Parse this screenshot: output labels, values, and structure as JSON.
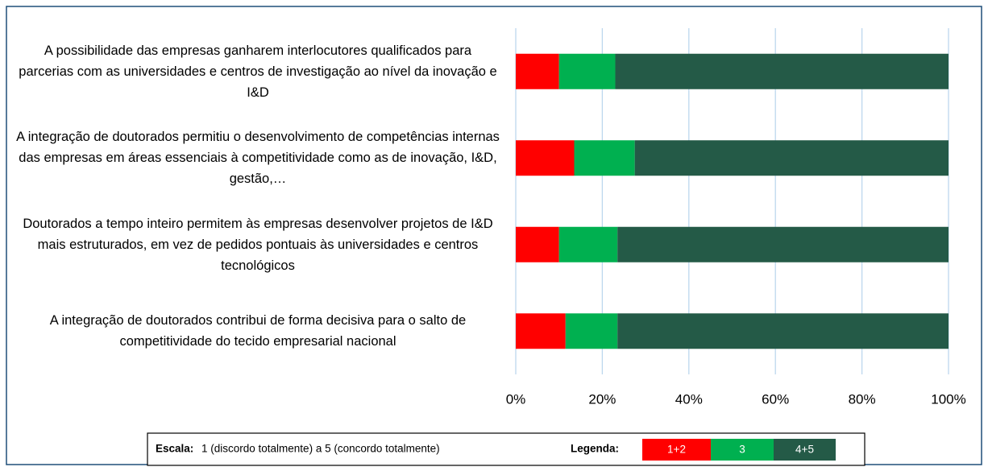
{
  "chart_data": {
    "type": "stacked-bar-horizontal",
    "categories": [
      "A possibilidade das empresas ganharem interlocutores qualificados para parcerias com as universidades e centros de investigação ao nível da inovação e I&D",
      "A integração de doutorados permitiu o desenvolvimento de competências internas das empresas em áreas essenciais à competitividade como as de inovação, I&D, gestão,…",
      "Doutorados a tempo inteiro permitem às empresas desenvolver projetos de I&D mais estruturados, em vez de pedidos pontuais às universidades e centros tecnológicos",
      "A integração de doutorados contribui de forma decisiva para o salto de competitividade do tecido empresarial nacional"
    ],
    "series": [
      {
        "name": "1+2",
        "color": "#ff0000",
        "values": [
          10,
          13.5,
          10,
          11.5
        ]
      },
      {
        "name": "3",
        "color": "#00b050",
        "values": [
          13,
          14,
          13.5,
          12
        ]
      },
      {
        "name": "4+5",
        "color": "#245a47",
        "values": [
          77,
          72.5,
          76.5,
          76.5
        ]
      }
    ],
    "xlim": [
      0,
      100
    ],
    "xticks": [
      {
        "value": 0,
        "label": "0%"
      },
      {
        "value": 20,
        "label": "20%"
      },
      {
        "value": 40,
        "label": "40%"
      },
      {
        "value": 60,
        "label": "60%"
      },
      {
        "value": 80,
        "label": "80%"
      },
      {
        "value": 100,
        "label": "100%"
      }
    ],
    "grid": true,
    "scale_label": "Escala:",
    "scale_text": "1 (discordo totalmente) a 5 (concordo totalmente)",
    "legend_label": "Legenda:"
  }
}
